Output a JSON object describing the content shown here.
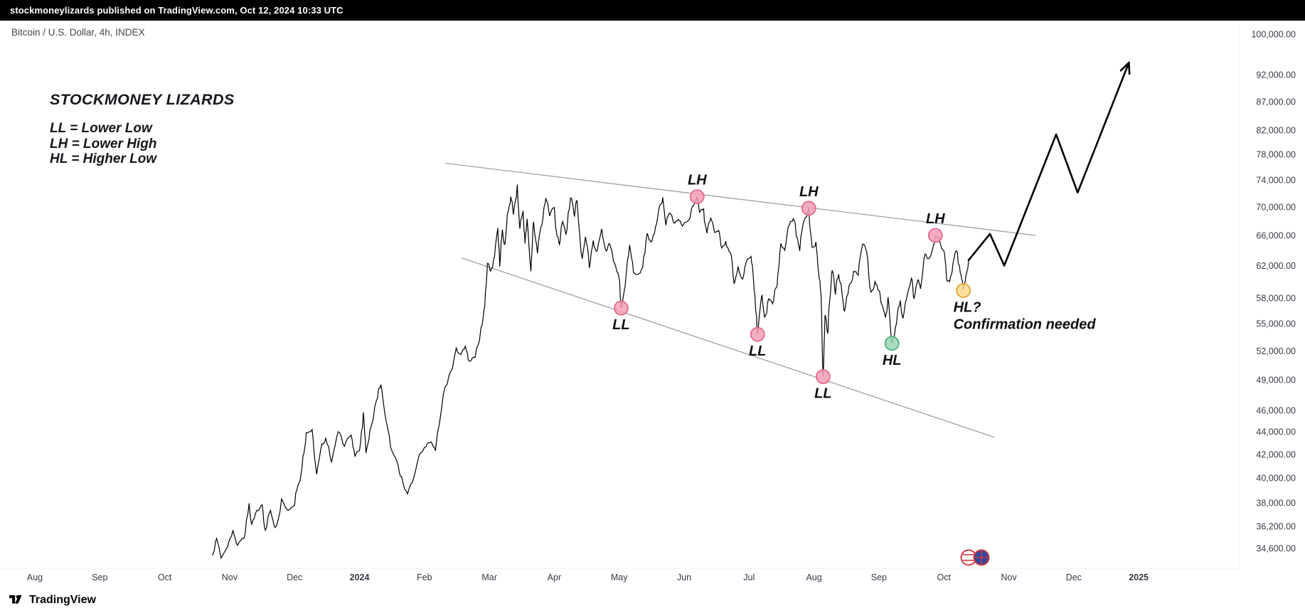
{
  "header": {
    "publish_line": "stockmoneylizards published on TradingView.com, Oct 12, 2024 10:33 UTC"
  },
  "chart_header": {
    "symbol_title": "Bitcoin / U.S. Dollar, 4h, INDEX"
  },
  "watermark": {
    "title": "STOCKMONEY LIZARDS",
    "legend": [
      "LL = Lower Low",
      "LH = Lower High",
      "HL = Higher Low"
    ]
  },
  "footer": {
    "brand": "TradingView"
  },
  "colors": {
    "topbar_bg": "#000000",
    "topbar_text": "#ffffff",
    "chart_bg": "#ffffff",
    "price_line": "#000000",
    "trendline": "#9aa0ab",
    "axis_text": "#363a45",
    "marker_pink_fill": "#f4a0b5",
    "marker_pink_stroke": "#e4698b",
    "marker_green_fill": "#97d8b2",
    "marker_green_stroke": "#4caf7d",
    "marker_yellow_fill": "#ffd98e",
    "marker_yellow_stroke": "#e0a52e",
    "emblem_red": "#d23a41",
    "emblem_blue": "#31479e"
  },
  "chart_data": {
    "type": "line",
    "title": "Bitcoin / U.S. Dollar, 4h, INDEX",
    "symbol": "Bitcoin / U.S. Dollar",
    "interval": "4h",
    "source": "INDEX",
    "y_axis": {
      "scale": "log",
      "ticks": [
        {
          "value": 100000,
          "label": "100,000.00"
        },
        {
          "value": 92000,
          "label": "92,000.00"
        },
        {
          "value": 87000,
          "label": "87,000.00"
        },
        {
          "value": 82000,
          "label": "82,000.00"
        },
        {
          "value": 78000,
          "label": "78,000.00"
        },
        {
          "value": 74000,
          "label": "74,000.00"
        },
        {
          "value": 70000,
          "label": "70,000.00"
        },
        {
          "value": 66000,
          "label": "66,000.00"
        },
        {
          "value": 62000,
          "label": "62,000.00"
        },
        {
          "value": 58000,
          "label": "58,000.00"
        },
        {
          "value": 55000,
          "label": "55,000.00"
        },
        {
          "value": 52000,
          "label": "52,000.00"
        },
        {
          "value": 49000,
          "label": "49,000.00"
        },
        {
          "value": 46000,
          "label": "46,000.00"
        },
        {
          "value": 44000,
          "label": "44,000.00"
        },
        {
          "value": 42000,
          "label": "42,000.00"
        },
        {
          "value": 40000,
          "label": "40,000.00"
        },
        {
          "value": 38000,
          "label": "38,000.00"
        },
        {
          "value": 36200,
          "label": "36,200.00"
        },
        {
          "value": 34600,
          "label": "34,600.00"
        }
      ]
    },
    "x_axis": {
      "labels": [
        {
          "label": "Aug",
          "m": 0
        },
        {
          "label": "Sep",
          "m": 1
        },
        {
          "label": "Oct",
          "m": 2
        },
        {
          "label": "Nov",
          "m": 3
        },
        {
          "label": "Dec",
          "m": 4
        },
        {
          "label": "2024",
          "m": 5,
          "year": true
        },
        {
          "label": "Feb",
          "m": 6
        },
        {
          "label": "Mar",
          "m": 7
        },
        {
          "label": "Apr",
          "m": 8
        },
        {
          "label": "May",
          "m": 9
        },
        {
          "label": "Jun",
          "m": 10
        },
        {
          "label": "Jul",
          "m": 11
        },
        {
          "label": "Aug",
          "m": 12
        },
        {
          "label": "Sep",
          "m": 13
        },
        {
          "label": "Oct",
          "m": 14
        },
        {
          "label": "Nov",
          "m": 15
        },
        {
          "label": "Dec",
          "m": 16
        },
        {
          "label": "2025",
          "m": 17,
          "year": true
        }
      ]
    },
    "series": [
      {
        "name": "BTCUSD INDEX close",
        "color": "#000000",
        "points": [
          [
            2.73,
            34100
          ],
          [
            2.8,
            35300
          ],
          [
            2.87,
            33900
          ],
          [
            2.97,
            34700
          ],
          [
            3.05,
            35900
          ],
          [
            3.12,
            34800
          ],
          [
            3.22,
            35300
          ],
          [
            3.3,
            37950
          ],
          [
            3.34,
            36350
          ],
          [
            3.42,
            37400
          ],
          [
            3.5,
            37850
          ],
          [
            3.55,
            35900
          ],
          [
            3.63,
            37400
          ],
          [
            3.7,
            36100
          ],
          [
            3.8,
            38300
          ],
          [
            3.9,
            37400
          ],
          [
            4.0,
            37800
          ],
          [
            4.07,
            39600
          ],
          [
            4.13,
            41900
          ],
          [
            4.18,
            43900
          ],
          [
            4.27,
            44200
          ],
          [
            4.34,
            40300
          ],
          [
            4.42,
            42900
          ],
          [
            4.48,
            43400
          ],
          [
            4.57,
            41300
          ],
          [
            4.67,
            44000
          ],
          [
            4.77,
            42700
          ],
          [
            4.87,
            43700
          ],
          [
            4.93,
            41800
          ],
          [
            5.0,
            42300
          ],
          [
            5.06,
            45800
          ],
          [
            5.1,
            42100
          ],
          [
            5.16,
            44100
          ],
          [
            5.26,
            46900
          ],
          [
            5.33,
            48500
          ],
          [
            5.39,
            45700
          ],
          [
            5.48,
            42600
          ],
          [
            5.58,
            41300
          ],
          [
            5.65,
            40100
          ],
          [
            5.74,
            38700
          ],
          [
            5.84,
            40100
          ],
          [
            5.94,
            42100
          ],
          [
            6.0,
            42600
          ],
          [
            6.1,
            43100
          ],
          [
            6.17,
            42300
          ],
          [
            6.29,
            47500
          ],
          [
            6.41,
            49900
          ],
          [
            6.49,
            52300
          ],
          [
            6.56,
            51600
          ],
          [
            6.63,
            52500
          ],
          [
            6.69,
            50900
          ],
          [
            6.78,
            51300
          ],
          [
            6.87,
            54500
          ],
          [
            6.93,
            57100
          ],
          [
            6.97,
            62300
          ],
          [
            7.02,
            61300
          ],
          [
            7.08,
            63200
          ],
          [
            7.13,
            67000
          ],
          [
            7.16,
            61900
          ],
          [
            7.2,
            66800
          ],
          [
            7.24,
            64800
          ],
          [
            7.29,
            69400
          ],
          [
            7.33,
            71500
          ],
          [
            7.37,
            68900
          ],
          [
            7.43,
            73300
          ],
          [
            7.47,
            66900
          ],
          [
            7.52,
            69400
          ],
          [
            7.55,
            64900
          ],
          [
            7.58,
            68300
          ],
          [
            7.64,
            61300
          ],
          [
            7.68,
            67900
          ],
          [
            7.74,
            63600
          ],
          [
            7.81,
            67500
          ],
          [
            7.87,
            71200
          ],
          [
            7.93,
            68700
          ],
          [
            8.0,
            69900
          ],
          [
            8.04,
            66000
          ],
          [
            8.08,
            64700
          ],
          [
            8.13,
            67900
          ],
          [
            8.18,
            66100
          ],
          [
            8.25,
            71300
          ],
          [
            8.31,
            68600
          ],
          [
            8.35,
            70900
          ],
          [
            8.43,
            62900
          ],
          [
            8.48,
            65800
          ],
          [
            8.54,
            61700
          ],
          [
            8.6,
            65300
          ],
          [
            8.66,
            63900
          ],
          [
            8.73,
            66900
          ],
          [
            8.8,
            63900
          ],
          [
            8.85,
            64900
          ],
          [
            8.93,
            62300
          ],
          [
            9.0,
            60300
          ],
          [
            9.03,
            56800
          ],
          [
            9.09,
            59400
          ],
          [
            9.16,
            64700
          ],
          [
            9.22,
            61100
          ],
          [
            9.29,
            60900
          ],
          [
            9.36,
            61700
          ],
          [
            9.43,
            66300
          ],
          [
            9.49,
            65100
          ],
          [
            9.56,
            67200
          ],
          [
            9.63,
            70300
          ],
          [
            9.67,
            71400
          ],
          [
            9.72,
            67400
          ],
          [
            9.78,
            69100
          ],
          [
            9.84,
            67700
          ],
          [
            9.91,
            68200
          ],
          [
            9.97,
            67300
          ],
          [
            10.04,
            67900
          ],
          [
            10.11,
            69500
          ],
          [
            10.17,
            70900
          ],
          [
            10.2,
            71400
          ],
          [
            10.24,
            69200
          ],
          [
            10.3,
            69700
          ],
          [
            10.35,
            66300
          ],
          [
            10.41,
            68400
          ],
          [
            10.47,
            66400
          ],
          [
            10.53,
            66700
          ],
          [
            10.58,
            64300
          ],
          [
            10.64,
            65200
          ],
          [
            10.71,
            63700
          ],
          [
            10.77,
            59700
          ],
          [
            10.83,
            61900
          ],
          [
            10.9,
            60300
          ],
          [
            10.97,
            62800
          ],
          [
            11.03,
            63200
          ],
          [
            11.07,
            60000
          ],
          [
            11.1,
            56800
          ],
          [
            11.13,
            53800
          ],
          [
            11.17,
            56700
          ],
          [
            11.2,
            58300
          ],
          [
            11.24,
            55700
          ],
          [
            11.3,
            57900
          ],
          [
            11.36,
            57300
          ],
          [
            11.43,
            59400
          ],
          [
            11.49,
            64900
          ],
          [
            11.55,
            64000
          ],
          [
            11.62,
            67400
          ],
          [
            11.68,
            68300
          ],
          [
            11.74,
            65600
          ],
          [
            11.78,
            63900
          ],
          [
            11.85,
            68100
          ],
          [
            11.92,
            69800
          ],
          [
            11.97,
            64400
          ],
          [
            12.03,
            65100
          ],
          [
            12.07,
            61200
          ],
          [
            12.11,
            58300
          ],
          [
            12.14,
            49300
          ],
          [
            12.17,
            56000
          ],
          [
            12.21,
            53900
          ],
          [
            12.24,
            57500
          ],
          [
            12.28,
            61400
          ],
          [
            12.33,
            58400
          ],
          [
            12.38,
            60900
          ],
          [
            12.43,
            58600
          ],
          [
            12.47,
            56400
          ],
          [
            12.54,
            59500
          ],
          [
            12.61,
            61300
          ],
          [
            12.68,
            60800
          ],
          [
            12.75,
            64800
          ],
          [
            12.81,
            63800
          ],
          [
            12.88,
            58700
          ],
          [
            12.94,
            60000
          ],
          [
            13.0,
            58900
          ],
          [
            13.04,
            57300
          ],
          [
            13.1,
            55700
          ],
          [
            13.14,
            58100
          ],
          [
            13.2,
            52800
          ],
          [
            13.27,
            55000
          ],
          [
            13.33,
            57700
          ],
          [
            13.37,
            55600
          ],
          [
            13.44,
            58500
          ],
          [
            13.5,
            60400
          ],
          [
            13.54,
            57900
          ],
          [
            13.6,
            60200
          ],
          [
            13.64,
            59100
          ],
          [
            13.71,
            63500
          ],
          [
            13.77,
            62900
          ],
          [
            13.83,
            64300
          ],
          [
            13.87,
            65900
          ],
          [
            13.93,
            65400
          ],
          [
            14.0,
            63900
          ],
          [
            14.04,
            60300
          ],
          [
            14.09,
            60000
          ],
          [
            14.14,
            62300
          ],
          [
            14.2,
            63900
          ],
          [
            14.24,
            62000
          ],
          [
            14.27,
            60500
          ],
          [
            14.3,
            58900
          ],
          [
            14.34,
            60800
          ],
          [
            14.38,
            62700
          ]
        ]
      }
    ],
    "trendlines": [
      {
        "name": "upper-resistance-trendline",
        "from": [
          6.32,
          76600
        ],
        "to": [
          15.41,
          66000
        ]
      },
      {
        "name": "lower-support-trendline",
        "from": [
          6.57,
          63000
        ],
        "to": [
          14.78,
          43500
        ]
      }
    ],
    "projection": {
      "name": "bullish-breakout-projection",
      "points": [
        [
          14.38,
          62700
        ],
        [
          14.71,
          66200
        ],
        [
          14.93,
          62000
        ],
        [
          15.73,
          81300
        ],
        [
          16.06,
          72100
        ],
        [
          16.85,
          94300
        ]
      ]
    },
    "markers": [
      {
        "label": "LH",
        "m": 10.2,
        "price": 71500,
        "kind": "lower-high",
        "color_key": "pink",
        "label_pos": "above"
      },
      {
        "label": "LH",
        "m": 11.92,
        "price": 69800,
        "kind": "lower-high",
        "color_key": "pink",
        "label_pos": "above"
      },
      {
        "label": "LH",
        "m": 13.87,
        "price": 66000,
        "kind": "lower-high",
        "color_key": "pink",
        "label_pos": "above"
      },
      {
        "label": "LL",
        "m": 9.03,
        "price": 56800,
        "kind": "lower-low",
        "color_key": "pink",
        "label_pos": "below"
      },
      {
        "label": "LL",
        "m": 11.13,
        "price": 53800,
        "kind": "lower-low",
        "color_key": "pink",
        "label_pos": "below"
      },
      {
        "label": "LL",
        "m": 12.14,
        "price": 49300,
        "kind": "lower-low",
        "color_key": "pink",
        "label_pos": "below"
      },
      {
        "label": "HL",
        "m": 13.2,
        "price": 52800,
        "kind": "higher-low",
        "color_key": "green",
        "label_pos": "below"
      },
      {
        "label": "",
        "m": 14.3,
        "price": 58900,
        "kind": "possible-higher-low",
        "color_key": "yellow",
        "label_pos": "none"
      }
    ],
    "annotation": {
      "m": 14.3,
      "price": 58900,
      "lines": [
        "HL?",
        "Confirmation needed"
      ]
    }
  }
}
